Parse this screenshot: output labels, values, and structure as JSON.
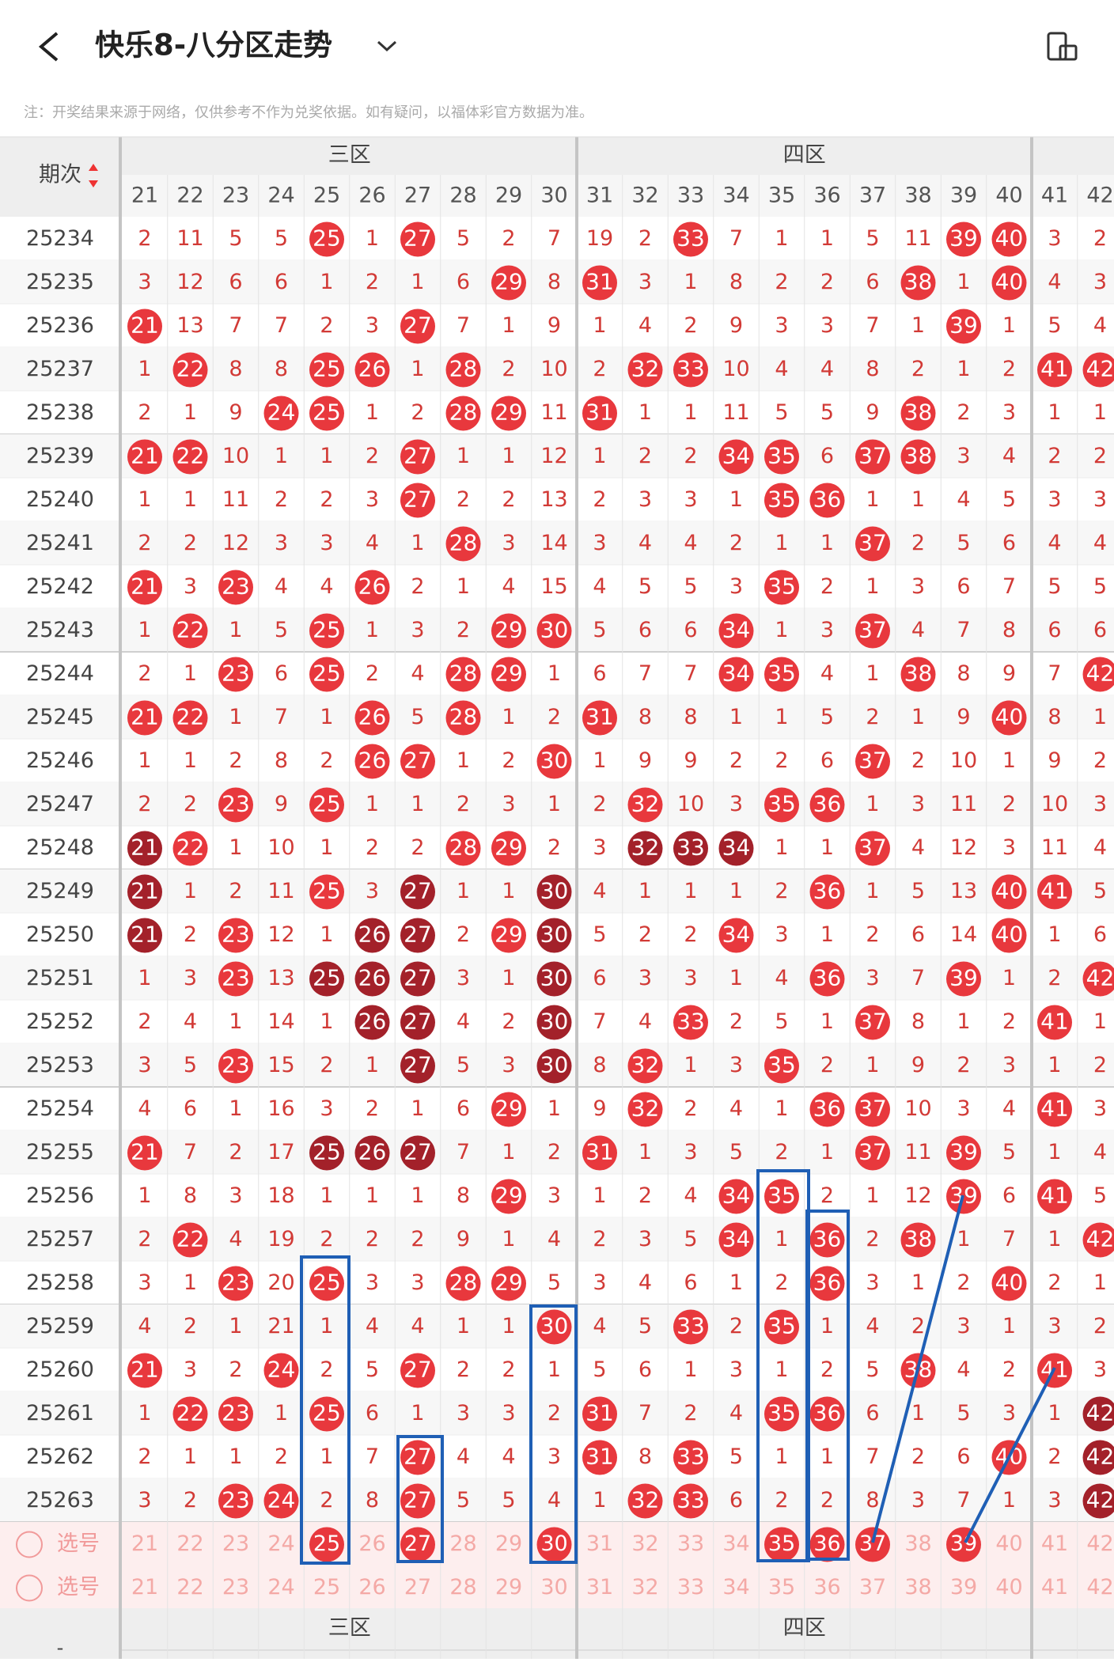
{
  "header": {
    "title": "快乐8-八分区走势",
    "note": "注：开奖结果来源于网络，仅供参考不作为兑奖依据。如有疑问，以福体彩官方数据为准。"
  },
  "table": {
    "issue_header": "期次",
    "zones": [
      "三区",
      "四区"
    ],
    "columns": [
      21,
      22,
      23,
      24,
      25,
      26,
      27,
      28,
      29,
      30,
      31,
      32,
      33,
      34,
      35,
      36,
      37,
      38,
      39,
      40,
      41,
      42
    ],
    "rows": [
      {
        "issue": "25234",
        "values": [
          2,
          11,
          5,
          5,
          25,
          1,
          27,
          5,
          2,
          7,
          19,
          2,
          33,
          7,
          1,
          1,
          5,
          11,
          39,
          40,
          3,
          2
        ],
        "dark": []
      },
      {
        "issue": "25235",
        "values": [
          3,
          12,
          6,
          6,
          1,
          2,
          1,
          6,
          29,
          8,
          31,
          3,
          1,
          8,
          2,
          2,
          6,
          38,
          1,
          40,
          4,
          3
        ],
        "dark": []
      },
      {
        "issue": "25236",
        "values": [
          21,
          13,
          7,
          7,
          2,
          3,
          27,
          7,
          1,
          9,
          1,
          4,
          2,
          9,
          3,
          3,
          7,
          1,
          39,
          1,
          5,
          4
        ],
        "dark": []
      },
      {
        "issue": "25237",
        "values": [
          1,
          22,
          8,
          8,
          25,
          26,
          1,
          28,
          2,
          10,
          2,
          32,
          33,
          10,
          4,
          4,
          8,
          2,
          1,
          2,
          41,
          42
        ],
        "dark": []
      },
      {
        "issue": "25238",
        "values": [
          2,
          1,
          9,
          24,
          25,
          1,
          2,
          28,
          29,
          11,
          31,
          1,
          1,
          11,
          5,
          5,
          9,
          38,
          2,
          3,
          1,
          1
        ],
        "dark": []
      },
      {
        "issue": "25239",
        "values": [
          21,
          22,
          10,
          1,
          1,
          2,
          27,
          1,
          1,
          12,
          1,
          2,
          2,
          34,
          35,
          6,
          37,
          38,
          3,
          4,
          2,
          2
        ],
        "dark": []
      },
      {
        "issue": "25240",
        "values": [
          1,
          1,
          11,
          2,
          2,
          3,
          27,
          2,
          2,
          13,
          2,
          3,
          3,
          1,
          35,
          36,
          1,
          1,
          4,
          5,
          3,
          3
        ],
        "dark": []
      },
      {
        "issue": "25241",
        "values": [
          2,
          2,
          12,
          3,
          3,
          4,
          1,
          28,
          3,
          14,
          3,
          4,
          4,
          2,
          1,
          1,
          37,
          2,
          5,
          6,
          4,
          4
        ],
        "dark": []
      },
      {
        "issue": "25242",
        "values": [
          21,
          3,
          23,
          4,
          4,
          26,
          2,
          1,
          4,
          15,
          4,
          5,
          5,
          3,
          35,
          2,
          1,
          3,
          6,
          7,
          5,
          5
        ],
        "dark": []
      },
      {
        "issue": "25243",
        "values": [
          1,
          22,
          1,
          5,
          25,
          1,
          3,
          2,
          29,
          30,
          5,
          6,
          6,
          34,
          1,
          3,
          37,
          4,
          7,
          8,
          6,
          6
        ],
        "dark": []
      },
      {
        "issue": "25244",
        "values": [
          2,
          1,
          23,
          6,
          25,
          2,
          4,
          28,
          29,
          1,
          6,
          7,
          7,
          34,
          35,
          4,
          1,
          38,
          8,
          9,
          7,
          42
        ],
        "dark": []
      },
      {
        "issue": "25245",
        "values": [
          21,
          22,
          1,
          7,
          1,
          26,
          5,
          28,
          1,
          2,
          31,
          8,
          8,
          1,
          1,
          5,
          2,
          1,
          9,
          40,
          8,
          1
        ],
        "dark": []
      },
      {
        "issue": "25246",
        "values": [
          1,
          1,
          2,
          8,
          2,
          26,
          27,
          1,
          2,
          30,
          1,
          9,
          9,
          2,
          2,
          6,
          37,
          2,
          10,
          1,
          9,
          2
        ],
        "dark": []
      },
      {
        "issue": "25247",
        "values": [
          2,
          2,
          23,
          9,
          25,
          1,
          1,
          2,
          3,
          1,
          2,
          32,
          10,
          3,
          35,
          36,
          1,
          3,
          11,
          2,
          10,
          3
        ],
        "dark": []
      },
      {
        "issue": "25248",
        "values": [
          21,
          22,
          1,
          10,
          1,
          2,
          2,
          28,
          29,
          2,
          3,
          32,
          33,
          34,
          1,
          1,
          37,
          4,
          12,
          3,
          11,
          4
        ],
        "dark": [
          0,
          11,
          12,
          13
        ]
      },
      {
        "issue": "25249",
        "values": [
          21,
          1,
          2,
          11,
          25,
          3,
          27,
          1,
          1,
          30,
          4,
          1,
          1,
          1,
          2,
          36,
          1,
          5,
          13,
          40,
          41,
          5
        ],
        "dark": [
          0,
          6,
          9
        ]
      },
      {
        "issue": "25250",
        "values": [
          21,
          2,
          23,
          12,
          1,
          26,
          27,
          2,
          29,
          30,
          5,
          2,
          2,
          34,
          3,
          1,
          2,
          6,
          14,
          40,
          1,
          6
        ],
        "dark": [
          0,
          5,
          6,
          9
        ]
      },
      {
        "issue": "25251",
        "values": [
          1,
          3,
          23,
          13,
          25,
          26,
          27,
          3,
          1,
          30,
          6,
          3,
          3,
          1,
          4,
          36,
          3,
          7,
          39,
          1,
          2,
          42
        ],
        "dark": [
          4,
          5,
          6,
          9
        ]
      },
      {
        "issue": "25252",
        "values": [
          2,
          4,
          1,
          14,
          1,
          26,
          27,
          4,
          2,
          30,
          7,
          4,
          33,
          2,
          5,
          1,
          37,
          8,
          1,
          2,
          41,
          1
        ],
        "dark": [
          5,
          6,
          9
        ]
      },
      {
        "issue": "25253",
        "values": [
          3,
          5,
          23,
          15,
          2,
          1,
          27,
          5,
          3,
          30,
          8,
          32,
          1,
          3,
          35,
          2,
          1,
          9,
          2,
          3,
          1,
          2
        ],
        "dark": [
          6,
          9
        ]
      },
      {
        "issue": "25254",
        "values": [
          4,
          6,
          1,
          16,
          3,
          2,
          1,
          6,
          29,
          1,
          9,
          32,
          2,
          4,
          1,
          36,
          37,
          10,
          3,
          4,
          41,
          3
        ],
        "dark": []
      },
      {
        "issue": "25255",
        "values": [
          21,
          7,
          2,
          17,
          25,
          26,
          27,
          7,
          1,
          2,
          31,
          1,
          3,
          5,
          2,
          1,
          37,
          11,
          39,
          5,
          1,
          4
        ],
        "dark": [
          4,
          5,
          6
        ]
      },
      {
        "issue": "25256",
        "values": [
          1,
          8,
          3,
          18,
          1,
          1,
          1,
          8,
          29,
          3,
          1,
          2,
          4,
          34,
          35,
          2,
          1,
          12,
          39,
          6,
          41,
          5
        ],
        "dark": []
      },
      {
        "issue": "25257",
        "values": [
          2,
          22,
          4,
          19,
          2,
          2,
          2,
          9,
          1,
          4,
          2,
          3,
          5,
          34,
          1,
          36,
          2,
          38,
          1,
          7,
          1,
          42
        ],
        "dark": []
      },
      {
        "issue": "25258",
        "values": [
          3,
          1,
          23,
          20,
          25,
          3,
          3,
          28,
          29,
          5,
          3,
          4,
          6,
          1,
          2,
          36,
          3,
          1,
          2,
          40,
          2,
          1
        ],
        "dark": []
      },
      {
        "issue": "25259",
        "values": [
          4,
          2,
          1,
          21,
          1,
          4,
          4,
          1,
          1,
          30,
          4,
          5,
          33,
          2,
          35,
          1,
          4,
          2,
          3,
          1,
          3,
          2
        ],
        "dark": []
      },
      {
        "issue": "25260",
        "values": [
          21,
          3,
          2,
          24,
          2,
          5,
          27,
          2,
          2,
          1,
          5,
          6,
          1,
          3,
          1,
          2,
          5,
          38,
          4,
          2,
          41,
          3
        ],
        "dark": []
      },
      {
        "issue": "25261",
        "values": [
          1,
          22,
          23,
          1,
          25,
          6,
          1,
          3,
          3,
          2,
          31,
          7,
          2,
          4,
          35,
          36,
          6,
          1,
          5,
          3,
          1,
          42
        ],
        "dark": [
          21
        ]
      },
      {
        "issue": "25262",
        "values": [
          2,
          1,
          1,
          2,
          1,
          7,
          27,
          4,
          4,
          3,
          31,
          8,
          33,
          5,
          1,
          1,
          7,
          2,
          6,
          40,
          2,
          42
        ],
        "dark": [
          21
        ]
      },
      {
        "issue": "25263",
        "values": [
          3,
          2,
          23,
          24,
          2,
          8,
          27,
          5,
          5,
          4,
          1,
          32,
          33,
          6,
          2,
          2,
          8,
          3,
          7,
          1,
          3,
          42
        ],
        "dark": [
          21
        ]
      }
    ],
    "select_label": "选号",
    "selected": [
      4,
      6,
      9,
      14,
      15,
      16,
      18
    ],
    "footer_issue": "-"
  }
}
